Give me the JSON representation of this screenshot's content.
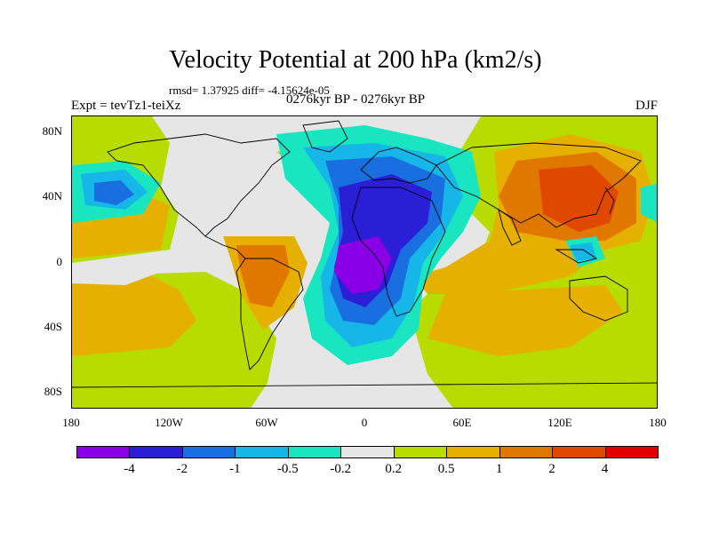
{
  "title": "Velocity Potential at 200 hPa (km2/s)",
  "stats": "rmsd= 1.37925 diff= -4.15624e-05",
  "expt": "Expt = tevTz1-teiXz",
  "period": "0276kyr BP - 0276kyr BP",
  "season": "DJF",
  "lat_ticks": [
    "80N",
    "40N",
    "0",
    "40S",
    "80S"
  ],
  "lon_ticks": [
    "180",
    "120W",
    "60W",
    "0",
    "60E",
    "120E",
    "180"
  ],
  "colorbar": {
    "labels": [
      "-4",
      "-2",
      "-1",
      "-0.5",
      "-0.2",
      "0.2",
      "0.5",
      "1",
      "2",
      "4"
    ],
    "colors": [
      "#8a00e6",
      "#2a1fd6",
      "#1a6fe0",
      "#16b6e8",
      "#19e6c0",
      "#e6e6e6",
      "#b8dc00",
      "#e6b000",
      "#e07800",
      "#e04800",
      "#e00000"
    ]
  },
  "chart_data": {
    "type": "heatmap",
    "variable": "Velocity Potential at 200 hPa",
    "units": "km2/s",
    "projection": "cylindrical equidistant",
    "xlim": [
      -180,
      180
    ],
    "ylim": [
      -90,
      90
    ],
    "contour_levels": [
      -4,
      -2,
      -1,
      -0.5,
      -0.2,
      0.2,
      0.5,
      1,
      2,
      4
    ],
    "features": [
      {
        "region": "equatorial Atlantic / Africa",
        "level": "< -4"
      },
      {
        "region": "Mediterranean / Middle East",
        "level": "-4 to -2"
      },
      {
        "region": "East Asia / West Pacific",
        "level": "2 to 4"
      },
      {
        "region": "South Atlantic / Brazil",
        "level": "0.5 to 1"
      },
      {
        "region": "North Pacific (160W)",
        "level": "-1 to -0.5"
      }
    ]
  }
}
